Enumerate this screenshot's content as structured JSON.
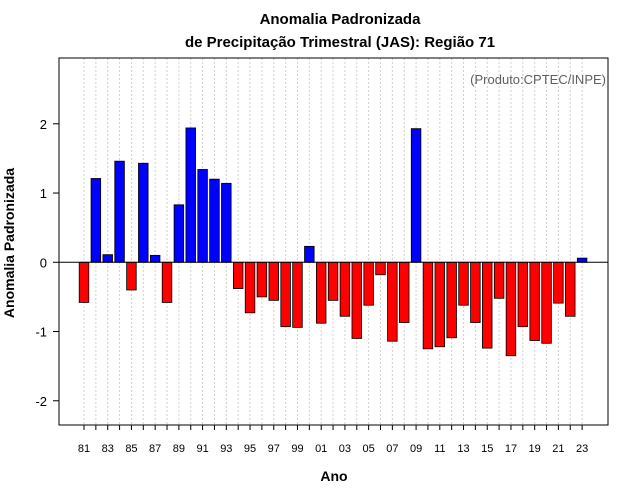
{
  "chart_data": {
    "type": "bar",
    "title": "Anomalia Padronizada",
    "subtitle": "de Precipitação Trimestral (JAS): Região 71",
    "credit": "(Produto:CPTEC/INPE)",
    "xlabel": "Ano",
    "ylabel": "Anomalia Padronizada",
    "ylim": [
      -2.35,
      2.95
    ],
    "yticks": [
      -2,
      -1,
      0,
      1,
      2
    ],
    "ytick_labels": [
      "-2",
      "-1",
      "0",
      "1",
      "2"
    ],
    "x_tick_labels": [
      "81",
      "83",
      "85",
      "87",
      "89",
      "91",
      "93",
      "95",
      "97",
      "99",
      "01",
      "03",
      "05",
      "07",
      "09",
      "11",
      "13",
      "15",
      "17",
      "19",
      "21",
      "23"
    ],
    "grid": true,
    "positive_color": "#0000ff",
    "negative_color": "#ff0000",
    "categories": [
      "81",
      "82",
      "83",
      "84",
      "85",
      "86",
      "87",
      "88",
      "89",
      "90",
      "91",
      "92",
      "93",
      "94",
      "95",
      "96",
      "97",
      "98",
      "99",
      "00",
      "01",
      "02",
      "03",
      "04",
      "05",
      "06",
      "07",
      "08",
      "09",
      "10",
      "11",
      "12",
      "13",
      "14",
      "15",
      "16",
      "17",
      "18",
      "19",
      "20",
      "21",
      "22",
      "23"
    ],
    "values": [
      -0.58,
      1.21,
      0.11,
      1.46,
      -0.4,
      1.43,
      0.1,
      -0.58,
      0.83,
      1.94,
      1.34,
      1.2,
      1.14,
      -0.38,
      -0.73,
      -0.5,
      -0.55,
      -0.93,
      -0.94,
      0.23,
      -0.88,
      -0.55,
      -0.78,
      -1.1,
      -0.62,
      -0.18,
      -1.14,
      -0.87,
      1.93,
      -1.25,
      -1.22,
      -1.09,
      -0.62,
      -0.87,
      -1.24,
      -0.52,
      -1.35,
      -0.93,
      -1.13,
      -1.17,
      -0.59,
      -0.78,
      0.06
    ]
  }
}
